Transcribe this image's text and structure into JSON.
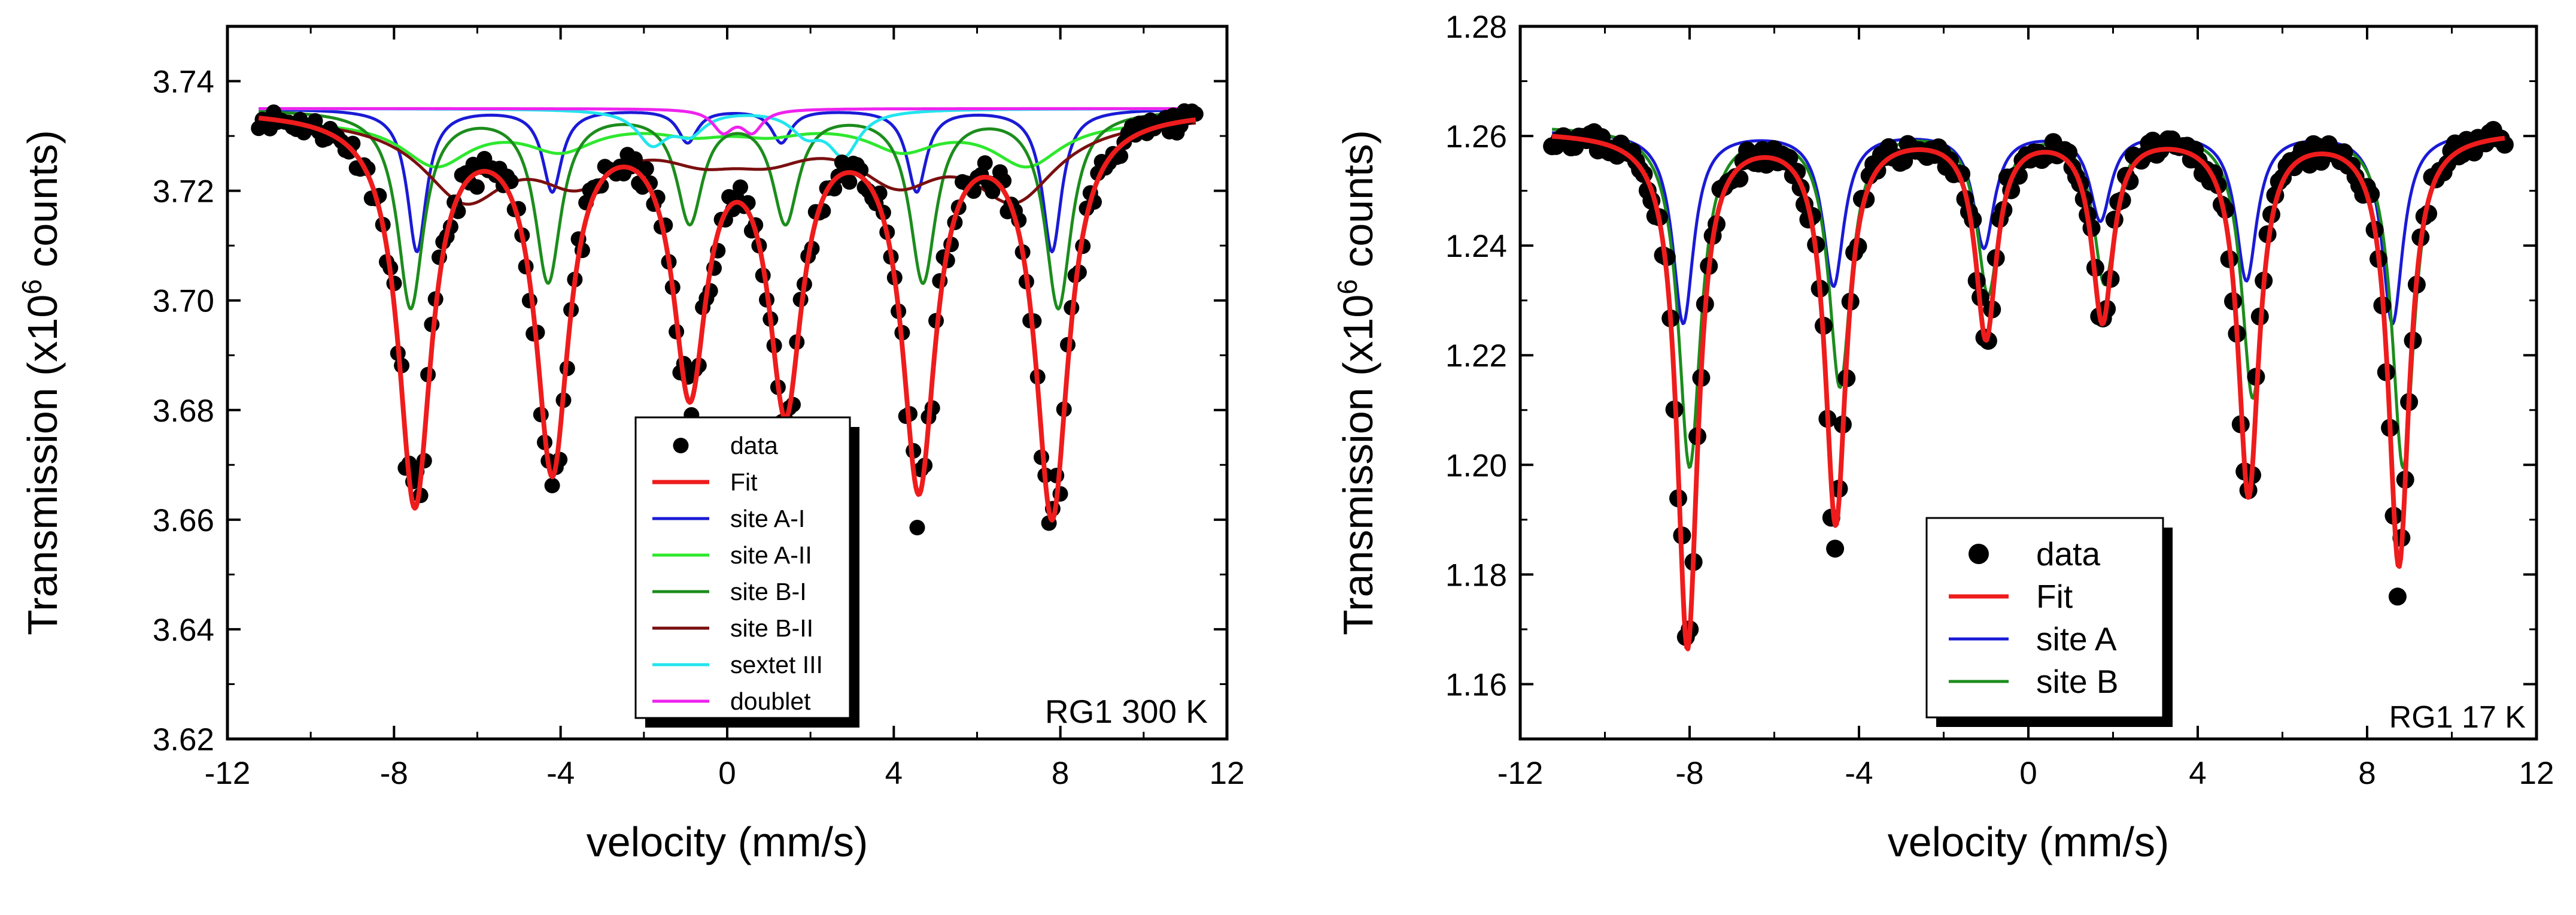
{
  "colors": {
    "data": "#000000",
    "fit": "#ee1c1c",
    "siteA_I": "#1a1ad6",
    "siteA_II": "#2ee82e",
    "siteB_I": "#1c8c1c",
    "siteB_II": "#7a0f0f",
    "sextetIII": "#22e5ee",
    "doublet": "#ee22ee",
    "siteA": "#1a1ad6",
    "siteB": "#1c8c1c"
  },
  "chart_data": [
    {
      "type": "scatter",
      "title": "",
      "annotation": "RG1 300 K",
      "xlabel": "velocity (mm/s)",
      "ylabel_main": "Transmission (x10",
      "ylabel_sup": "6",
      "ylabel_tail": " counts)",
      "xlim": [
        -12,
        12
      ],
      "ylim": [
        3.62,
        3.75
      ],
      "xticks": [
        -12,
        -8,
        -4,
        0,
        4,
        8,
        12
      ],
      "xtick_labels": [
        "-12",
        "-8",
        "-4",
        "0",
        "4",
        "8",
        "12"
      ],
      "yticks": [
        3.62,
        3.64,
        3.66,
        3.68,
        3.7,
        3.72,
        3.74
      ],
      "ytick_labels": [
        "3.62",
        "3.64",
        "3.66",
        "3.68",
        "3.70",
        "3.72",
        "3.74"
      ],
      "baseline": 3.735,
      "data_points_y_range": [
        3.659,
        3.738
      ],
      "legend": [
        "data",
        "Fit",
        "site A-I",
        "site A-II",
        "site B-I",
        "site B-II",
        "sextet III",
        "doublet"
      ],
      "components": [
        {
          "name": "site A-I",
          "color_key": "siteA_I",
          "base": 3.735,
          "hwhm": 0.28,
          "lines": [
            [
              -7.45,
              0.026
            ],
            [
              -4.2,
              0.015
            ],
            [
              -0.95,
              0.006
            ],
            [
              1.3,
              0.006
            ],
            [
              4.55,
              0.015
            ],
            [
              7.8,
              0.026
            ]
          ]
        },
        {
          "name": "site A-II",
          "color_key": "siteA_II",
          "base": 3.733,
          "hwhm": 1.0,
          "lines": [
            [
              -7.0,
              0.008
            ],
            [
              -4.0,
              0.005
            ],
            [
              -0.8,
              0.002
            ],
            [
              1.0,
              0.002
            ],
            [
              4.2,
              0.005
            ],
            [
              7.2,
              0.008
            ]
          ]
        },
        {
          "name": "site B-I",
          "color_key": "siteB_I",
          "base": 3.735,
          "hwhm": 0.38,
          "lines": [
            [
              -7.6,
              0.036
            ],
            [
              -4.3,
              0.031
            ],
            [
              -0.9,
              0.02
            ],
            [
              1.4,
              0.02
            ],
            [
              4.7,
              0.031
            ],
            [
              7.95,
              0.036
            ]
          ]
        },
        {
          "name": "site B-II",
          "color_key": "siteB_II",
          "base": 3.734,
          "hwhm": 1.25,
          "lines": [
            [
              -6.3,
              0.014
            ],
            [
              -3.6,
              0.01
            ],
            [
              -0.6,
              0.005
            ],
            [
              1.0,
              0.005
            ],
            [
              4.1,
              0.01
            ],
            [
              6.9,
              0.014
            ]
          ]
        },
        {
          "name": "sextet III",
          "color_key": "sextetIII",
          "base": 3.735,
          "hwhm": 0.45,
          "lines": [
            [
              -1.8,
              0.006
            ],
            [
              -0.9,
              0.004
            ],
            [
              1.9,
              0.004
            ],
            [
              2.8,
              0.008
            ]
          ]
        },
        {
          "name": "doublet",
          "color_key": "doublet",
          "base": 3.735,
          "hwhm": 0.3,
          "lines": [
            [
              -0.1,
              0.004
            ],
            [
              0.6,
              0.004
            ]
          ]
        }
      ],
      "fit": {
        "name": "Fit",
        "color_key": "fit",
        "base": 3.735,
        "hwhm": 0.48,
        "lines": [
          [
            -7.5,
            0.071
          ],
          [
            -4.2,
            0.064
          ],
          [
            -0.9,
            0.049
          ],
          [
            1.4,
            0.052
          ],
          [
            4.6,
            0.067
          ],
          [
            7.8,
            0.073
          ]
        ]
      }
    },
    {
      "type": "scatter",
      "title": "",
      "annotation": "RG1 17 K",
      "xlabel": "velocity (mm/s)",
      "ylabel_main": "Transmission (x10",
      "ylabel_sup": "6",
      "ylabel_tail": " counts)",
      "xlim": [
        -12,
        12
      ],
      "ylim": [
        1.15,
        1.28
      ],
      "xticks": [
        -12,
        -8,
        -4,
        0,
        4,
        8,
        12
      ],
      "xtick_labels": [
        "-12",
        "-8",
        "-4",
        "0",
        "4",
        "8",
        "12"
      ],
      "yticks": [
        1.16,
        1.18,
        1.2,
        1.22,
        1.24,
        1.26,
        1.28
      ],
      "ytick_labels": [
        "1.16",
        "1.18",
        "1.20",
        "1.22",
        "1.24",
        "1.26",
        "1.28"
      ],
      "baseline": 1.261,
      "data_points_y_range": [
        1.166,
        1.263
      ],
      "legend": [
        "data",
        "Fit",
        "site A",
        "site B"
      ],
      "components": [
        {
          "name": "site A",
          "color_key": "siteA",
          "base": 1.261,
          "hwhm": 0.3,
          "lines": [
            [
              -8.15,
              0.035
            ],
            [
              -4.6,
              0.028
            ],
            [
              -1.05,
              0.021
            ],
            [
              1.7,
              0.016
            ],
            [
              5.15,
              0.027
            ],
            [
              8.6,
              0.035
            ]
          ]
        },
        {
          "name": "site B",
          "color_key": "siteB",
          "base": 1.262,
          "hwhm": 0.32,
          "lines": [
            [
              -8.0,
              0.062
            ],
            [
              -4.45,
              0.047
            ],
            [
              -0.95,
              0.03
            ],
            [
              1.8,
              0.028
            ],
            [
              5.3,
              0.049
            ],
            [
              8.85,
              0.062
            ]
          ]
        }
      ],
      "fit": {
        "name": "Fit",
        "color_key": "fit",
        "base": 1.261,
        "hwhm": 0.3,
        "lines": [
          [
            -8.05,
            0.094
          ],
          [
            -4.55,
            0.071
          ],
          [
            -1.0,
            0.037
          ],
          [
            1.75,
            0.034
          ],
          [
            5.2,
            0.066
          ],
          [
            8.75,
            0.079
          ]
        ]
      }
    }
  ]
}
